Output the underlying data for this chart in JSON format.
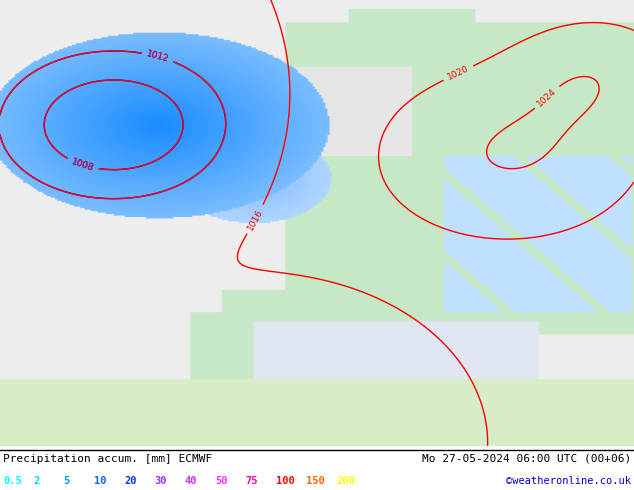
{
  "title_left": "Precipitation accum. [mm] ECMWF",
  "title_right": "Mo 27-05-2024 06:00 UTC (00+06)",
  "credit": "©weatheronline.co.uk",
  "legend_values": [
    "0.5",
    "2",
    "5",
    "10",
    "20",
    "30",
    "40",
    "50",
    "75",
    "100",
    "150",
    "200"
  ],
  "legend_colors": [
    "#00ffff",
    "#00ccff",
    "#0099ff",
    "#0066ff",
    "#0033ff",
    "#9933ff",
    "#cc33ff",
    "#ff33ff",
    "#ff0099",
    "#ff0000",
    "#ff6600",
    "#ffff00"
  ],
  "bg_color": "#ffffff",
  "figsize": [
    6.34,
    4.9
  ],
  "dpi": 100
}
